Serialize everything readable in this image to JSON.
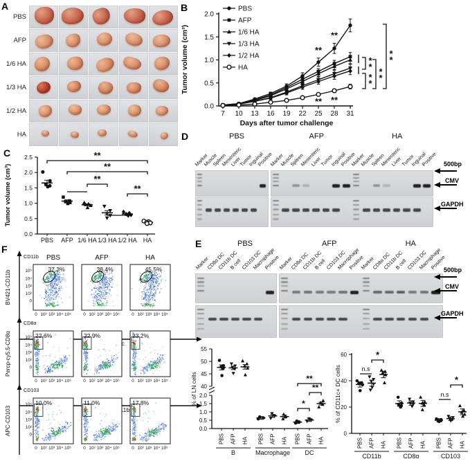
{
  "panelA": {
    "label": "A",
    "row_labels": [
      "PBS",
      "AFP",
      "1/6 HA",
      "1/3 HA",
      "1/2 HA",
      "HA"
    ],
    "photos_per_row": 5
  },
  "panelB": {
    "label": "B",
    "ylabel": "Tumor volume (cm³)",
    "xlabel": "Days after tumor challenge",
    "yticks": [
      "0.0",
      "0.5",
      "1.0",
      "1.5",
      "2.0"
    ],
    "days": [
      7,
      10,
      13,
      16,
      19,
      22,
      25,
      28,
      31
    ],
    "series": [
      {
        "name": "PBS",
        "symbol": "circle",
        "values": [
          0.02,
          0.05,
          0.15,
          0.27,
          0.43,
          0.65,
          0.95,
          1.25,
          1.75
        ],
        "err": [
          0.01,
          0.01,
          0.02,
          0.03,
          0.05,
          0.07,
          0.09,
          0.11,
          0.14
        ]
      },
      {
        "name": "AFP",
        "symbol": "square",
        "values": [
          0.02,
          0.05,
          0.13,
          0.24,
          0.4,
          0.58,
          0.75,
          0.92,
          1.07
        ],
        "err": [
          0.01,
          0.01,
          0.02,
          0.03,
          0.04,
          0.05,
          0.06,
          0.07,
          0.09
        ]
      },
      {
        "name": "1/6 HA",
        "symbol": "triup",
        "values": [
          0.02,
          0.05,
          0.12,
          0.22,
          0.37,
          0.53,
          0.7,
          0.86,
          1.0
        ],
        "err": [
          0.01,
          0.01,
          0.02,
          0.03,
          0.04,
          0.05,
          0.06,
          0.07,
          0.08
        ]
      },
      {
        "name": "1/3 HA",
        "symbol": "tridown",
        "values": [
          0.02,
          0.04,
          0.1,
          0.18,
          0.3,
          0.44,
          0.57,
          0.7,
          0.82
        ],
        "err": [
          0.01,
          0.01,
          0.02,
          0.03,
          0.04,
          0.05,
          0.06,
          0.07,
          0.08
        ]
      },
      {
        "name": "1/2 HA",
        "symbol": "diamond",
        "values": [
          0.02,
          0.04,
          0.1,
          0.17,
          0.28,
          0.41,
          0.53,
          0.65,
          0.76
        ],
        "err": [
          0.01,
          0.01,
          0.02,
          0.03,
          0.04,
          0.05,
          0.06,
          0.07,
          0.08
        ]
      },
      {
        "name": "HA",
        "symbol": "ocircle",
        "values": [
          0.01,
          0.02,
          0.04,
          0.08,
          0.12,
          0.18,
          0.25,
          0.33,
          0.42
        ],
        "err": [
          0.01,
          0.01,
          0.01,
          0.02,
          0.02,
          0.03,
          0.03,
          0.04,
          0.05
        ]
      }
    ],
    "sig_curve": [
      {
        "label": "**",
        "day": 25,
        "series": "PBS"
      },
      {
        "label": "**",
        "day": 28,
        "series": "PBS"
      },
      {
        "label": "**",
        "day": 25,
        "series": "HA"
      },
      {
        "label": "**",
        "day": 28,
        "series": "HA"
      }
    ],
    "sig_brackets": [
      {
        "label": "**",
        "pair": [
          "AFP / 1/6 HA",
          "1/3 HA / 1/2 HA"
        ]
      },
      {
        "label": "**",
        "pair": [
          "1/3 HA / 1/2 HA",
          "HA"
        ]
      },
      {
        "label": "**",
        "pair": [
          "AFP",
          "HA"
        ]
      },
      {
        "label": "**",
        "pair": [
          "PBS",
          "HA"
        ]
      }
    ]
  },
  "panelC": {
    "label": "C",
    "ylabel": "Tumor volume (cm³)",
    "yticks": [
      "0.0",
      "0.5",
      "1.0",
      "1.5",
      "2.0",
      "2.5"
    ],
    "groups": [
      {
        "name": "PBS",
        "symbol": "circle",
        "pts": [
          2.02,
          1.73,
          1.62,
          1.57,
          1.54
        ],
        "mean": 1.66,
        "sem": 0.09
      },
      {
        "name": "AFP",
        "symbol": "square",
        "pts": [
          1.2,
          1.08,
          1.05,
          1.02,
          0.99
        ],
        "mean": 1.07,
        "sem": 0.04
      },
      {
        "name": "1/6 HA",
        "symbol": "triup",
        "pts": [
          1.02,
          0.98,
          0.96,
          0.93,
          0.86
        ],
        "mean": 0.95,
        "sem": 0.03
      },
      {
        "name": "1/3 HA",
        "symbol": "tridown",
        "pts": [
          0.9,
          0.76,
          0.66,
          0.6,
          0.52
        ],
        "mean": 0.69,
        "sem": 0.07
      },
      {
        "name": "1/2 HA",
        "symbol": "diamond",
        "pts": [
          0.72,
          0.68,
          0.65,
          0.62,
          0.6
        ],
        "mean": 0.65,
        "sem": 0.02
      },
      {
        "name": "HA",
        "symbol": "ocircle",
        "pts": [
          0.42,
          0.4,
          0.38,
          0.36,
          0.34
        ],
        "mean": 0.38,
        "sem": 0.02
      }
    ],
    "sig": [
      {
        "label": "**",
        "pair": [
          "PBS",
          "HA"
        ]
      },
      {
        "label": "**",
        "pair": [
          "AFP",
          "HA"
        ]
      },
      {
        "label": "**",
        "pair": [
          "1/6 HA",
          "1/3 HA"
        ]
      },
      {
        "label": "**",
        "pair": [
          "1/2 HA",
          "HA"
        ]
      },
      {
        "label": "",
        "pair": [
          "AFP",
          "1/6 HA"
        ]
      },
      {
        "label": "",
        "pair": [
          "1/3 HA",
          "1/2 HA"
        ]
      }
    ]
  },
  "panelD": {
    "label": "D",
    "groups": [
      "PBS",
      "AFP",
      "HA"
    ],
    "lanes": [
      "Marker",
      "Muscle",
      "Spleen",
      "Mesenteric",
      "Liver",
      "Tumor",
      "Inguinal",
      "Positive"
    ],
    "annotations": [
      "500bp",
      "CMV",
      "GAPDH"
    ],
    "cmv_bands": {
      "PBS": {
        "Positive": 1
      },
      "AFP": {
        "Spleen": 0.3,
        "Mesenteric": 0.15,
        "Inguinal": 0.95,
        "Positive": 1
      },
      "HA": {
        "Spleen": 0.3,
        "Mesenteric": 0.12,
        "Inguinal": 1,
        "Positive": 1
      }
    },
    "gapdh_lanes": [
      "Muscle",
      "Spleen",
      "Mesenteric",
      "Liver",
      "Tumor",
      "Inguinal"
    ]
  },
  "panelE": {
    "label": "E",
    "groups": [
      "PBS",
      "AFP",
      "HA"
    ],
    "lanes": [
      "Marker",
      "CD8α DC",
      "CD11b DC",
      "B cell",
      "CD103 DC",
      "Macrophage",
      "Positive"
    ],
    "annotations": [
      "500bp",
      "CMV",
      "GAPDH"
    ],
    "cmv_bands": {
      "PBS": {
        "Positive": 1
      },
      "AFP": {
        "CD8α DC": 0.45,
        "CD11b DC": 0.5,
        "B cell": 0.45,
        "CD103 DC": 0.45,
        "Macrophage": 0.5,
        "Positive": 1
      },
      "HA": {
        "CD8α DC": 0.55,
        "CD11b DC": 0.55,
        "B cell": 0.6,
        "CD103 DC": 0.45,
        "Macrophage": 0.5,
        "Positive": 1
      }
    },
    "gapdh_lanes": [
      "CD8α DC",
      "CD11b DC",
      "B cell",
      "CD103 DC",
      "Macrophage"
    ],
    "ln_chart": {
      "ylabel": "% of LN cells",
      "upper_ticks": [
        "55",
        "50",
        "45",
        "40"
      ],
      "lower_ticks": [
        "2.0",
        "1.5",
        "1.0",
        "0.5",
        "0.0"
      ],
      "groups": [
        "B",
        "Macrophage",
        "DC"
      ],
      "treatments": [
        "PBS",
        "AFP",
        "HA"
      ],
      "points": {
        "B": {
          "PBS": {
            "pts": [
              50.4,
              48.3,
              47.8,
              47.2,
              44.3
            ],
            "mean": 47.6,
            "sem": 1.0
          },
          "AFP": {
            "pts": [
              49.0,
              48.2,
              47.6,
              47.0,
              45.2
            ],
            "mean": 47.4,
            "sem": 0.7
          },
          "HA": {
            "pts": [
              50.2,
              49.0,
              48.1,
              47.3,
              44.6
            ],
            "mean": 47.8,
            "sem": 0.9
          }
        },
        "Macrophage": {
          "PBS": {
            "pts": [
              0.58,
              0.64,
              0.7
            ],
            "mean": 0.64,
            "sem": 0.05
          },
          "AFP": {
            "pts": [
              0.62,
              0.76,
              0.9
            ],
            "mean": 0.76,
            "sem": 0.09
          },
          "HA": {
            "pts": [
              0.58,
              0.73,
              0.86
            ],
            "mean": 0.72,
            "sem": 0.09
          }
        },
        "DC": {
          "PBS": {
            "pts": [
              0.33,
              0.39,
              0.45
            ],
            "mean": 0.39,
            "sem": 0.04
          },
          "AFP": {
            "pts": [
              0.43,
              0.51,
              0.59
            ],
            "mean": 0.51,
            "sem": 0.05
          },
          "HA": {
            "pts": [
              1.3,
              1.45,
              1.56,
              1.68
            ],
            "mean": 1.5,
            "sem": 0.08
          }
        }
      },
      "sig": [
        {
          "label": "*",
          "group": "DC",
          "pair": [
            "PBS",
            "AFP"
          ]
        },
        {
          "label": "**",
          "group": "DC",
          "pair": [
            "AFP",
            "HA"
          ]
        },
        {
          "label": "**",
          "group": "DC",
          "pair": [
            "PBS",
            "HA"
          ]
        }
      ]
    },
    "dc_chart": {
      "ylabel": "% of CD11c+ DC cells",
      "yticks": [
        "0",
        "20",
        "40",
        "60"
      ],
      "groups": [
        "CD11b",
        "CD8α",
        "CD103"
      ],
      "treatments": [
        "PBS",
        "AFP",
        "HA"
      ],
      "points": {
        "CD11b": {
          "PBS": {
            "pts": [
              40,
              38.5,
              37.8,
              37,
              32.5
            ],
            "mean": 37.2,
            "sem": 1.2
          },
          "AFP": {
            "pts": [
              43,
              41,
              39.5,
              37.5,
              35,
              33
            ],
            "mean": 38.2,
            "sem": 1.5
          },
          "HA": {
            "pts": [
              48,
              47,
              46,
              44.5,
              38.5
            ],
            "mean": 44.8,
            "sem": 1.7
          }
        },
        "CD8α": {
          "PBS": {
            "pts": [
              27.5,
              23,
              22,
              21,
              20
            ],
            "mean": 22.7,
            "sem": 1.3
          },
          "AFP": {
            "pts": [
              26,
              24,
              23,
              22,
              20.5
            ],
            "mean": 23.1,
            "sem": 0.9
          },
          "HA": {
            "pts": [
              27.5,
              24,
              23,
              21.5,
              18
            ],
            "mean": 22.8,
            "sem": 1.5
          }
        },
        "CD103": {
          "PBS": {
            "pts": [
              11,
              10.5,
              10,
              9.6,
              9
            ],
            "mean": 10.0,
            "sem": 0.4
          },
          "AFP": {
            "pts": [
              13,
              12,
              11,
              10.5,
              9.5
            ],
            "mean": 11.2,
            "sem": 0.6
          },
          "HA": {
            "pts": [
              21,
              17.5,
              16,
              14.5,
              13
            ],
            "mean": 16.4,
            "sem": 1.4
          }
        }
      },
      "sig": [
        {
          "label": "n.s",
          "group": "CD11b",
          "pair": [
            "PBS",
            "AFP"
          ]
        },
        {
          "label": "*",
          "group": "CD11b",
          "pair": [
            "AFP",
            "HA"
          ]
        },
        {
          "label": "n.s",
          "group": "CD103",
          "pair": [
            "PBS",
            "AFP"
          ]
        },
        {
          "label": "*",
          "group": "CD103",
          "pair": [
            "AFP",
            "HA"
          ]
        }
      ]
    }
  },
  "panelF": {
    "label": "F",
    "col_titles": [
      "PBS",
      "AFP",
      "HA"
    ],
    "axis_ticks": [
      "0",
      "10²",
      "10³",
      "10⁴",
      "10⁵"
    ],
    "rows": [
      {
        "corner": "CD11b",
        "ylabel": "BV421-CD11b",
        "xlabel": "PE-CD11c",
        "gate": "ellipse",
        "percentages": [
          "37.3%",
          "38.4%",
          "45.5%"
        ]
      },
      {
        "corner": "CD8α",
        "ylabel": "Percp-cy5.5-CD8α",
        "xlabel": "BV421-CD11b",
        "gate": "rect",
        "percentages": [
          "22.6%",
          "22.9%",
          "23.2%"
        ]
      },
      {
        "corner": "CD103",
        "ylabel": "APC-CD103",
        "xlabel": "BV421-CD11b",
        "gate": "rect",
        "percentages": [
          "10.0%",
          "11.0%",
          "17.8%"
        ]
      }
    ]
  }
}
